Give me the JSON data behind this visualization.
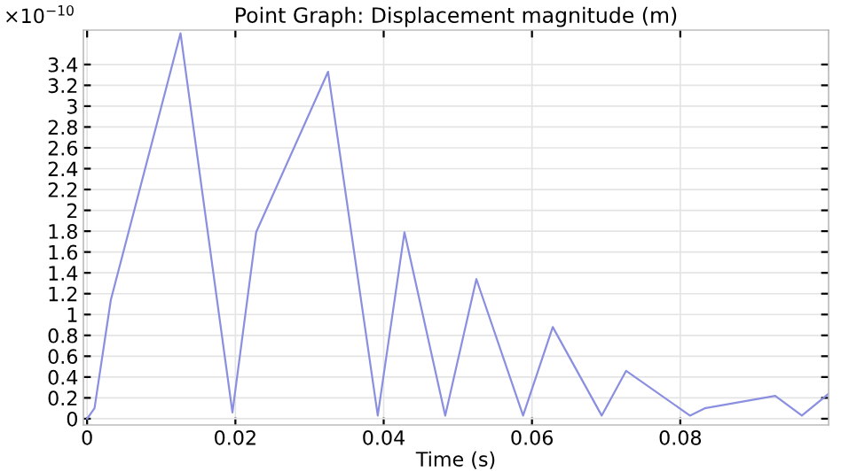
{
  "chart_data": {
    "type": "line",
    "title": "Point Graph: Displacement magnitude (m)",
    "xlabel": "Time (s)",
    "annotations": [
      "×10$^{−10}$"
    ],
    "x": [
      0,
      0.001,
      0.0032,
      0.0126,
      0.0196,
      0.0228,
      0.0325,
      0.0392,
      0.0428,
      0.0483,
      0.0525,
      0.0588,
      0.0628,
      0.0694,
      0.0727,
      0.0813,
      0.0833,
      0.0928,
      0.0964,
      0.1
    ],
    "series": [
      {
        "color": "#8a8fe0",
        "values": [
          0,
          0.1,
          1.14,
          3.7,
          0.06,
          1.79,
          3.33,
          0.03,
          1.79,
          0.03,
          1.34,
          0.03,
          0.88,
          0.03,
          0.46,
          0.03,
          0.1,
          0.22,
          0.03,
          0.24
        ]
      }
    ],
    "xlim": [
      -0.0005,
      0.1
    ],
    "ylim": [
      -0.06,
      3.73
    ],
    "xticks": [
      0,
      0.02,
      0.04,
      0.06,
      0.08
    ],
    "yticks": [
      0,
      0.2,
      0.4,
      0.6,
      0.8,
      1,
      1.2,
      1.4,
      1.6,
      1.8,
      2,
      2.2,
      2.4,
      2.6,
      2.8,
      3,
      3.2,
      3.4
    ],
    "grid": true,
    "line_style": "solid",
    "marker": "none"
  }
}
